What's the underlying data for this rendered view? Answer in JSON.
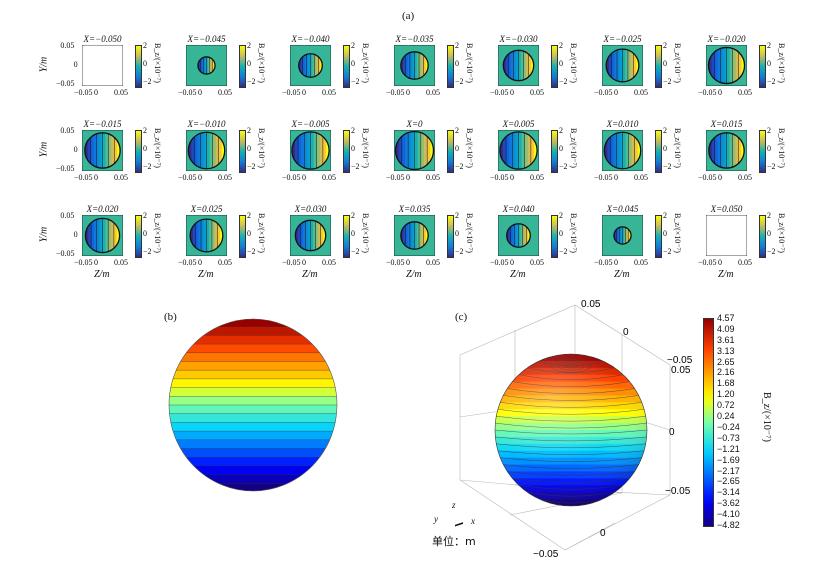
{
  "panel_labels": {
    "a": "(a)",
    "b": "(b)",
    "c": "(c)"
  },
  "panel_a": {
    "y_label": "Y/m",
    "z_label": "Z/m",
    "y_ticks": [
      "0.05",
      "0",
      "−0.05"
    ],
    "z_ticks": [
      "−0.05",
      "0",
      "0.05"
    ],
    "colorbar_ticks": [
      "2",
      "0",
      "−2"
    ],
    "colorbar_label": "B_z/(×10⁻⁷)",
    "titles": [
      "X=−0.050",
      "X=−0.045",
      "X=−0.040",
      "X=−0.035",
      "X=−0.030",
      "X=−0.025",
      "X=−0.020",
      "X=−0.015",
      "X=−0.010",
      "X=−0.005",
      "X=0",
      "X=0.005",
      "X=0.010",
      "X=0.015",
      "X=0.020",
      "X=0.025",
      "X=0.030",
      "X=0.035",
      "X=0.040",
      "X=0.045",
      "X=0.050"
    ],
    "disk_radius_fraction": [
      0,
      0.45,
      0.62,
      0.72,
      0.8,
      0.86,
      0.95,
      0.93,
      0.96,
      0.98,
      1.0,
      0.98,
      0.96,
      0.93,
      0.9,
      0.86,
      0.8,
      0.72,
      0.62,
      0.45,
      0
    ]
  },
  "panel_c": {
    "colorbar_ticks": [
      "4.57",
      "4.09",
      "3.61",
      "3.13",
      "2.65",
      "2.16",
      "1.68",
      "1.20",
      "0.72",
      "0.24",
      "−0.24",
      "−0.73",
      "−1.21",
      "−1.69",
      "−2.17",
      "−2.65",
      "−3.14",
      "−3.62",
      "−4.10",
      "−4.82"
    ],
    "colorbar_label": "B_z/(×10⁻⁷)",
    "axis_ticks": {
      "top_left": "0.05",
      "top_mid": "0",
      "right_top_a": "−0.05",
      "right_top_b": "0.05",
      "right_mid": "0",
      "right_bottom": "−0.05",
      "bottom_left": "−0.05",
      "bottom_mid": "0"
    },
    "triad": {
      "z": "z",
      "y": "y",
      "x": "x"
    },
    "unit_text": "单位：m"
  },
  "colors": {
    "panel_bg": "#37b697",
    "low": "#2b1fa4",
    "high": "#f4e33a"
  }
}
